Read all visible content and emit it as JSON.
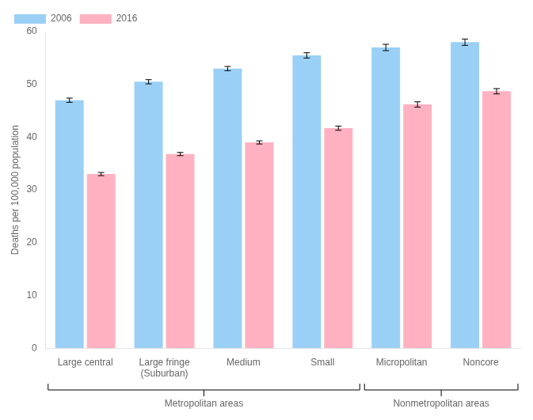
{
  "chart_data": {
    "type": "bar",
    "categories": [
      "Large central",
      "Large fringe\n(Suburban)",
      "Medium",
      "Small",
      "Micropolitan",
      "Noncore"
    ],
    "series": [
      {
        "name": "2006",
        "values": [
          47.0,
          50.5,
          53.0,
          55.5,
          57.0,
          58.0
        ],
        "errors": [
          0.4,
          0.4,
          0.4,
          0.5,
          0.6,
          0.6
        ]
      },
      {
        "name": "2016",
        "values": [
          33.0,
          36.8,
          39.0,
          41.7,
          46.2,
          48.7
        ],
        "errors": [
          0.3,
          0.3,
          0.3,
          0.4,
          0.5,
          0.5
        ]
      }
    ],
    "ylabel": "Deaths per 100,000 population",
    "ylim": [
      0,
      60
    ],
    "yticks": [
      0,
      10,
      20,
      30,
      40,
      50,
      60
    ],
    "grid": false,
    "legend": "upper left",
    "annotations": [
      {
        "text": "Metropolitan areas",
        "from": "Large central",
        "to": "Small"
      },
      {
        "text": "Nonmetropolitan areas",
        "from": "Micropolitan",
        "to": "Noncore"
      }
    ]
  }
}
